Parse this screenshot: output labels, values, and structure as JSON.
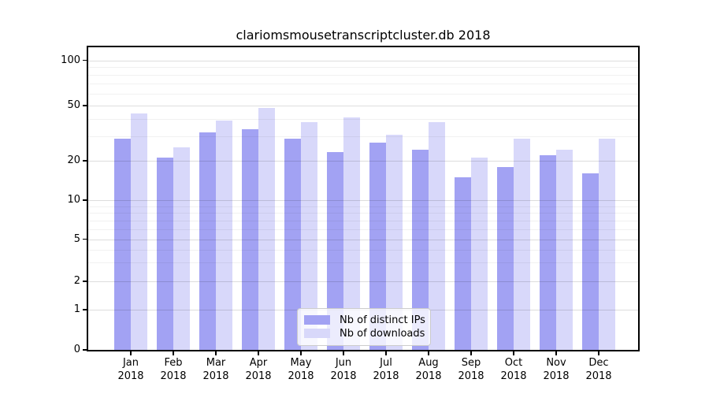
{
  "chart_data": {
    "type": "bar",
    "title": "clariomsmousetranscriptcluster.db 2018",
    "categories": [
      "Jan 2018",
      "Feb 2018",
      "Mar 2018",
      "Apr 2018",
      "May 2018",
      "Jun 2018",
      "Jul 2018",
      "Aug 2018",
      "Sep 2018",
      "Oct 2018",
      "Nov 2018",
      "Dec 2018"
    ],
    "series": [
      {
        "name": "Nb of distinct IPs",
        "color": "#a2a2f3",
        "values": [
          29,
          21,
          32,
          34,
          29,
          23,
          27,
          24,
          15,
          18,
          22,
          16
        ]
      },
      {
        "name": "Nb of downloads",
        "color": "#d8d8fa",
        "values": [
          44,
          25,
          39,
          48,
          38,
          41,
          31,
          38,
          21,
          29,
          24,
          29
        ]
      }
    ],
    "y_axis": {
      "scale": "symlog",
      "tick_values": [
        0,
        1,
        2,
        5,
        10,
        20,
        50,
        100
      ],
      "tick_labels": [
        "0",
        "1",
        "2",
        "5",
        "10",
        "20",
        "50",
        "100"
      ],
      "minor_gridlines": [
        3,
        4,
        6,
        7,
        8,
        9,
        30,
        40,
        60,
        70,
        80,
        90
      ],
      "ylim": [
        0,
        130
      ]
    },
    "xlabel": "",
    "ylabel": "",
    "grid": true,
    "legend_position": "inside-bottom-center"
  }
}
